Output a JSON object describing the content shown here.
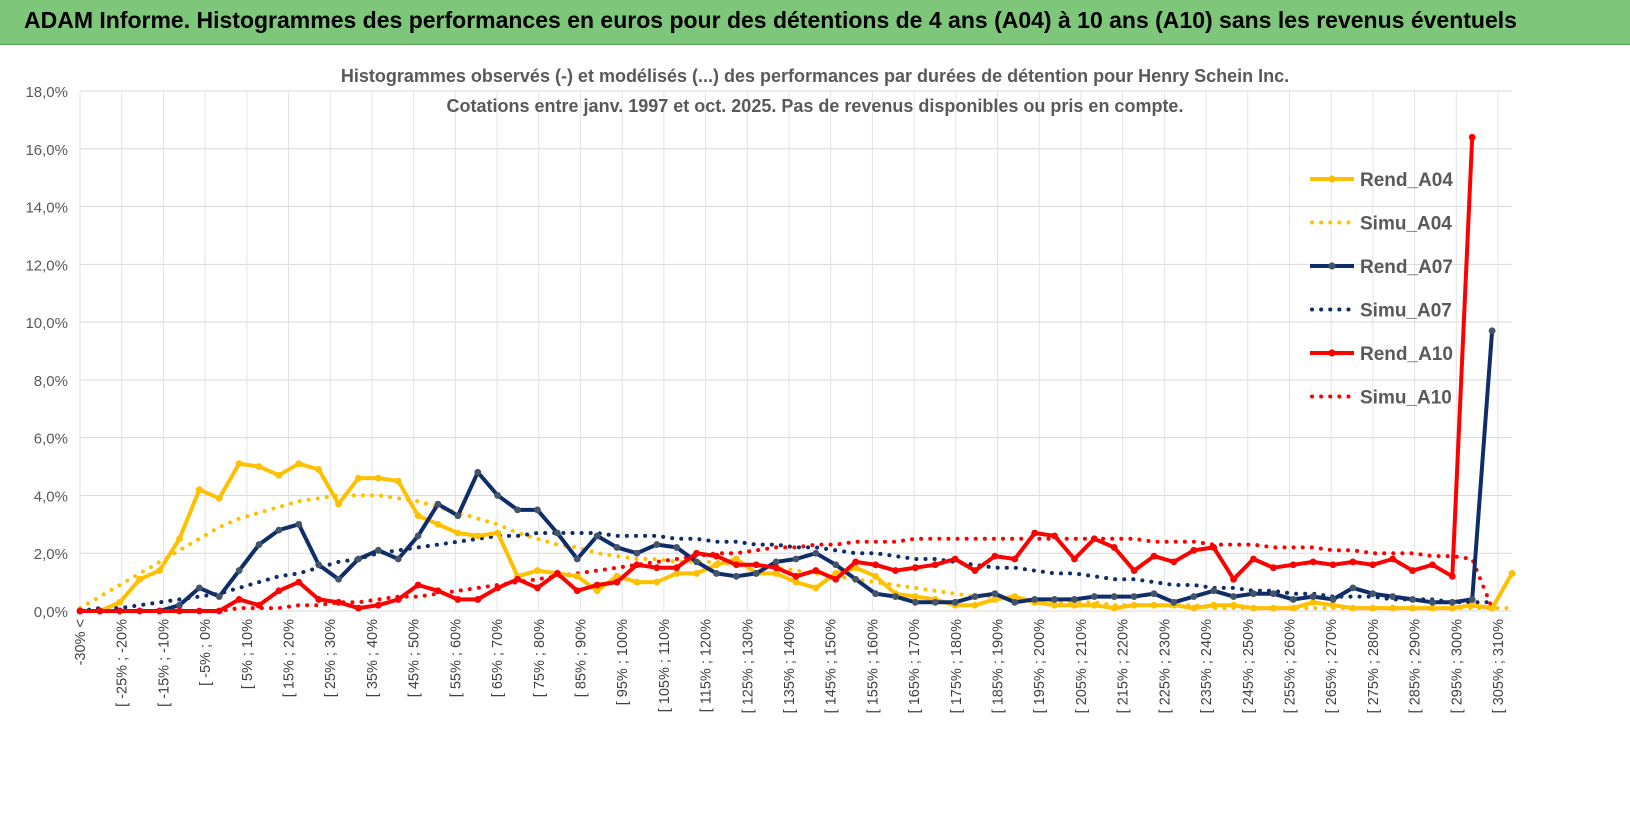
{
  "banner": {
    "title": "ADAM Informe. Histogrammes des performances en euros pour des détentions de 4 ans (A04) à 10 ans (A10) sans les revenus éventuels"
  },
  "colors": {
    "a04": "#FFC000",
    "a07": "#0F2D69",
    "a10": "#FF0000",
    "grid": "#d9d9d9",
    "banner": "#7dc67a"
  },
  "chart_data": {
    "type": "line",
    "title": "Histogrammes observés (-) et modélisés (...) des performances par durées de détention pour Henry Schein Inc.",
    "subtitle": "Cotations entre janv. 1997 et oct. 2025. Pas de revenus disponibles ou pris en compte.",
    "xlabel": "",
    "ylabel": "",
    "ylim": [
      0,
      18
    ],
    "y_ticks": [
      "0,0%",
      "2,0%",
      "4,0%",
      "6,0%",
      "8,0%",
      "10,0%",
      "12,0%",
      "14,0%",
      "16,0%",
      "18,0%"
    ],
    "grid": true,
    "legend_position": "right",
    "x_labels": [
      "-30% <",
      "[ -25% ; -20%",
      "[ -15% ; -10%",
      "[ -5% ; 0%",
      "[ 5% ; 10%",
      "[ 15% ; 20%",
      "[ 25% ; 30%",
      "[ 35% ; 40%",
      "[ 45% ; 50%",
      "[ 55% ; 60%",
      "[ 65% ; 70%",
      "[ 75% ; 80%",
      "[ 85% ; 90%",
      "[ 95% ; 100%",
      "[ 105% ; 110%",
      "[ 115% ; 120%",
      "[ 125% ; 130%",
      "[ 135% ; 140%",
      "[ 145% ; 150%",
      "[ 155% ; 160%",
      "[ 165% ; 170%",
      "[ 175% ; 180%",
      "[ 185% ; 190%",
      "[ 195% ; 200%",
      "[ 205% ; 210%",
      "[ 215% ; 220%",
      "[ 225% ; 230%",
      "[ 235% ; 240%",
      "[ 245% ; 250%",
      "[ 255% ; 260%",
      "[ 265% ; 270%",
      "[ 275% ; 280%",
      "[ 285% ; 290%",
      "[ 295% ; 300%",
      "[ 305% ; 310%"
    ],
    "series": [
      {
        "name": "Rend_A04",
        "style": "solid",
        "color": "#FFC000",
        "values": [
          0.0,
          0.0,
          0.3,
          1.1,
          1.4,
          2.5,
          4.2,
          3.9,
          5.1,
          5.0,
          4.7,
          5.1,
          4.9,
          3.7,
          4.6,
          4.6,
          4.5,
          3.3,
          3.0,
          2.7,
          2.6,
          2.7,
          1.2,
          1.4,
          1.3,
          1.2,
          0.7,
          1.2,
          1.0,
          1.0,
          1.3,
          1.3,
          1.6,
          1.8,
          1.3,
          1.3,
          1.0,
          0.8,
          1.3,
          1.5,
          1.2,
          0.6,
          0.5,
          0.4,
          0.2,
          0.2,
          0.4,
          0.5,
          0.3,
          0.2,
          0.2,
          0.2,
          0.1,
          0.2,
          0.2,
          0.2,
          0.1,
          0.2,
          0.2,
          0.1,
          0.1,
          0.1,
          0.3,
          0.2,
          0.1,
          0.1,
          0.1,
          0.1,
          0.1,
          0.1,
          0.2,
          0.1,
          1.3
        ]
      },
      {
        "name": "Simu_A04",
        "style": "dotted",
        "color": "#FFC000",
        "values": [
          0.1,
          0.5,
          0.9,
          1.3,
          1.7,
          2.1,
          2.5,
          2.9,
          3.2,
          3.4,
          3.6,
          3.8,
          3.9,
          4.0,
          4.0,
          4.0,
          3.9,
          3.8,
          3.6,
          3.4,
          3.2,
          3.0,
          2.7,
          2.5,
          2.3,
          2.2,
          2.0,
          1.9,
          1.8,
          1.8,
          1.7,
          1.7,
          1.7,
          1.6,
          1.6,
          1.5,
          1.4,
          1.3,
          1.2,
          1.1,
          1.0,
          0.9,
          0.8,
          0.7,
          0.6,
          0.5,
          0.5,
          0.4,
          0.4,
          0.3,
          0.3,
          0.3,
          0.2,
          0.2,
          0.2,
          0.2,
          0.2,
          0.1,
          0.1,
          0.1,
          0.1,
          0.1,
          0.1,
          0.1,
          0.1,
          0.1,
          0.1,
          0.1,
          0.1,
          0.1,
          0.1,
          0.1,
          0.1
        ]
      },
      {
        "name": "Rend_A07",
        "style": "solid",
        "color": "#0F2D69",
        "values": [
          0.0,
          0.0,
          0.0,
          0.0,
          0.0,
          0.2,
          0.8,
          0.5,
          1.4,
          2.3,
          2.8,
          3.0,
          1.6,
          1.1,
          1.8,
          2.1,
          1.8,
          2.6,
          3.7,
          3.3,
          4.8,
          4.0,
          3.5,
          3.5,
          2.7,
          1.8,
          2.6,
          2.2,
          2.0,
          2.3,
          2.2,
          1.7,
          1.3,
          1.2,
          1.3,
          1.7,
          1.8,
          2.0,
          1.6,
          1.1,
          0.6,
          0.5,
          0.3,
          0.3,
          0.3,
          0.5,
          0.6,
          0.3,
          0.4,
          0.4,
          0.4,
          0.5,
          0.5,
          0.5,
          0.6,
          0.3,
          0.5,
          0.7,
          0.5,
          0.6,
          0.6,
          0.4,
          0.5,
          0.4,
          0.8,
          0.6,
          0.5,
          0.4,
          0.3,
          0.3,
          0.4,
          9.7
        ]
      },
      {
        "name": "Simu_A07",
        "style": "dotted",
        "color": "#0F2D69",
        "values": [
          0.0,
          0.1,
          0.1,
          0.2,
          0.3,
          0.4,
          0.5,
          0.6,
          0.8,
          1.0,
          1.2,
          1.3,
          1.5,
          1.7,
          1.8,
          2.0,
          2.1,
          2.2,
          2.3,
          2.4,
          2.5,
          2.6,
          2.6,
          2.7,
          2.7,
          2.7,
          2.7,
          2.6,
          2.6,
          2.6,
          2.5,
          2.5,
          2.4,
          2.4,
          2.3,
          2.3,
          2.2,
          2.2,
          2.1,
          2.0,
          2.0,
          1.9,
          1.8,
          1.8,
          1.7,
          1.6,
          1.5,
          1.5,
          1.4,
          1.3,
          1.3,
          1.2,
          1.1,
          1.1,
          1.0,
          0.9,
          0.9,
          0.8,
          0.8,
          0.7,
          0.7,
          0.6,
          0.6,
          0.5,
          0.5,
          0.5,
          0.4,
          0.4,
          0.4,
          0.3,
          0.3,
          0.3
        ]
      },
      {
        "name": "Rend_A10",
        "style": "solid",
        "color": "#FF0000",
        "values": [
          0.0,
          0.0,
          0.0,
          0.0,
          0.0,
          0.0,
          0.0,
          0.0,
          0.4,
          0.2,
          0.7,
          1.0,
          0.4,
          0.3,
          0.1,
          0.2,
          0.4,
          0.9,
          0.7,
          0.4,
          0.4,
          0.8,
          1.1,
          0.8,
          1.3,
          0.7,
          0.9,
          1.0,
          1.6,
          1.5,
          1.5,
          2.0,
          1.9,
          1.6,
          1.6,
          1.5,
          1.2,
          1.4,
          1.1,
          1.7,
          1.6,
          1.4,
          1.5,
          1.6,
          1.8,
          1.4,
          1.9,
          1.8,
          2.7,
          2.6,
          1.8,
          2.5,
          2.2,
          1.4,
          1.9,
          1.7,
          2.1,
          2.2,
          1.1,
          1.8,
          1.5,
          1.6,
          1.7,
          1.6,
          1.7,
          1.6,
          1.8,
          1.4,
          1.6,
          1.2,
          16.4
        ]
      },
      {
        "name": "Simu_A10",
        "style": "dotted",
        "color": "#FF0000",
        "values": [
          0.0,
          0.0,
          0.0,
          0.0,
          0.0,
          0.0,
          0.0,
          0.0,
          0.1,
          0.1,
          0.1,
          0.2,
          0.2,
          0.3,
          0.3,
          0.4,
          0.5,
          0.5,
          0.6,
          0.7,
          0.8,
          0.9,
          1.0,
          1.1,
          1.2,
          1.3,
          1.4,
          1.5,
          1.6,
          1.7,
          1.8,
          1.9,
          2.0,
          2.0,
          2.1,
          2.2,
          2.2,
          2.3,
          2.3,
          2.4,
          2.4,
          2.4,
          2.5,
          2.5,
          2.5,
          2.5,
          2.5,
          2.5,
          2.5,
          2.5,
          2.5,
          2.5,
          2.5,
          2.5,
          2.4,
          2.4,
          2.4,
          2.3,
          2.3,
          2.3,
          2.2,
          2.2,
          2.2,
          2.1,
          2.1,
          2.0,
          2.0,
          2.0,
          1.9,
          1.9,
          1.8,
          0.1
        ]
      }
    ]
  }
}
